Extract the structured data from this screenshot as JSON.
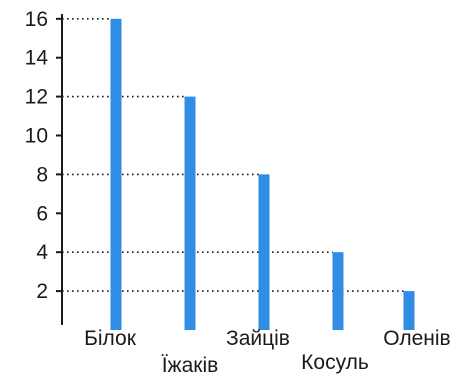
{
  "chart_data": {
    "type": "bar",
    "categories": [
      "Білок",
      "Їжаків",
      "Зайців",
      "Косуль",
      "Оленів"
    ],
    "values": [
      16,
      12,
      8,
      4,
      2
    ],
    "yticks": [
      2,
      4,
      6,
      8,
      10,
      12,
      14,
      16
    ],
    "ylim": [
      0,
      16
    ],
    "title": "",
    "xlabel": "",
    "ylabel": "",
    "grid": false,
    "guide_lines": "dotted lines from y-axis to each bar top",
    "bar_color": "#2f8de4",
    "axis_color": "#1a1a1a"
  }
}
